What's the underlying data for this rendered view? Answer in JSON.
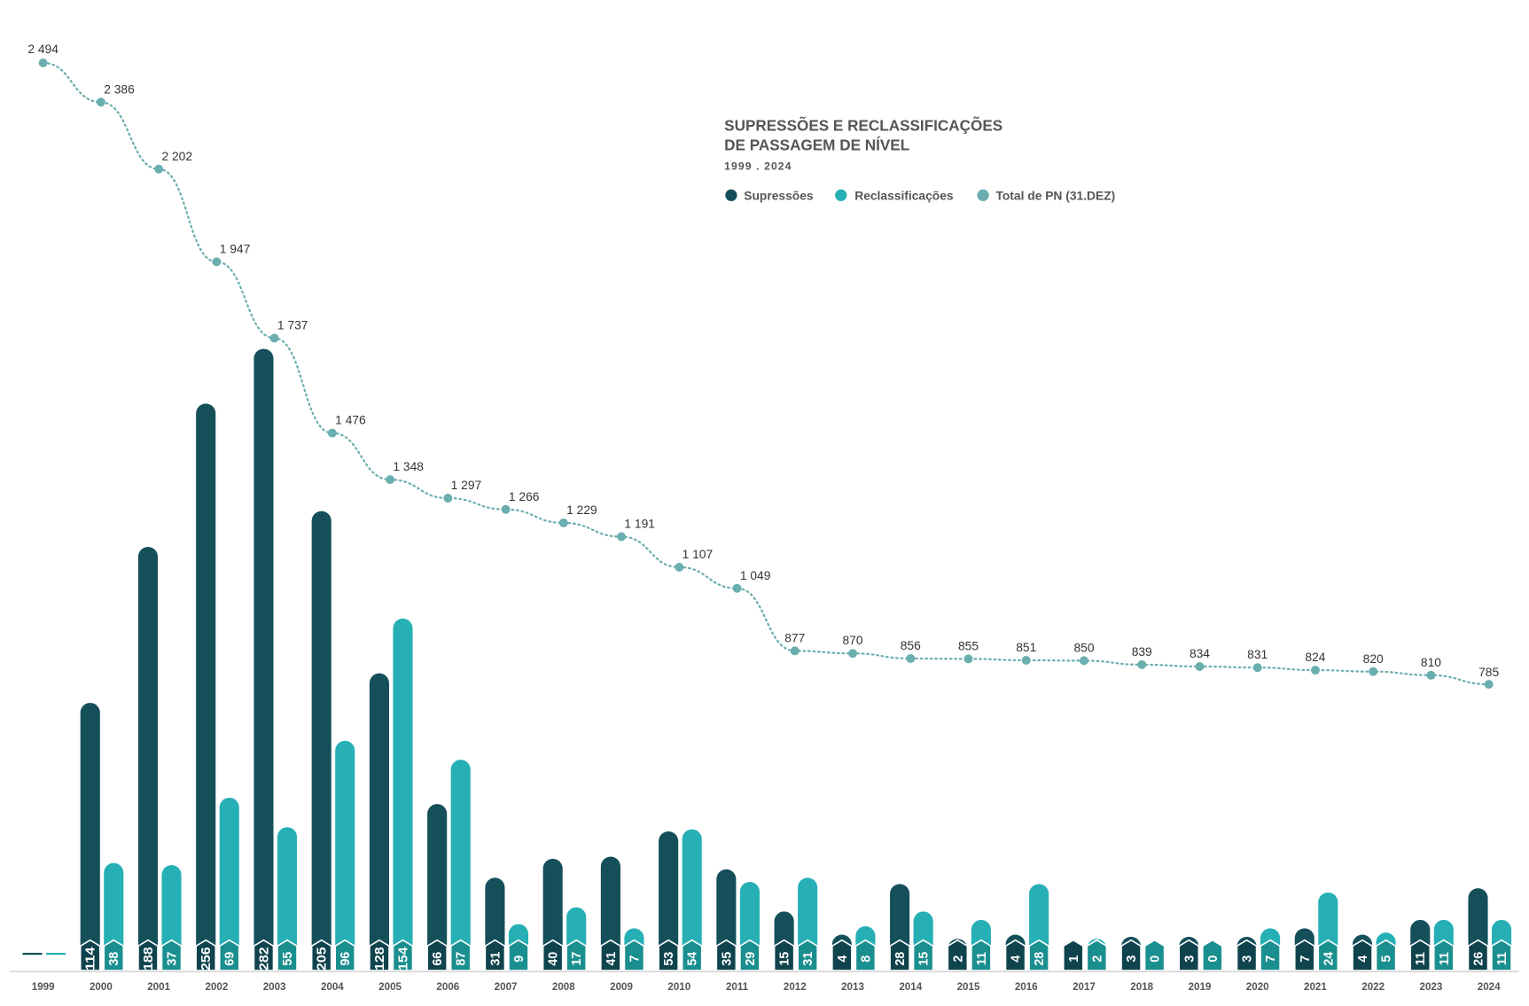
{
  "chart_data": {
    "type": "bar",
    "title_line1": "SUPRESSÕES E RECLASSIFICAÇÕES",
    "title_line2": "DE PASSAGEM DE NÍVEL",
    "subtitle": "1999 . 2024",
    "legend_placement": "top-right",
    "categories": [
      "1999",
      "2000",
      "2001",
      "2002",
      "2003",
      "2004",
      "2005",
      "2006",
      "2007",
      "2008",
      "2009",
      "2010",
      "2011",
      "2012",
      "2013",
      "2014",
      "2015",
      "2016",
      "2017",
      "2018",
      "2019",
      "2020",
      "2021",
      "2022",
      "2023",
      "2024"
    ],
    "series": [
      {
        "name": "Supressões",
        "type": "bar",
        "color": "#154f5a",
        "label_color": "#0f434d",
        "values": [
          null,
          114,
          188,
          256,
          282,
          205,
          128,
          66,
          31,
          40,
          41,
          53,
          35,
          15,
          4,
          28,
          2,
          4,
          1,
          3,
          3,
          3,
          7,
          4,
          11,
          26
        ]
      },
      {
        "name": "Reclassificações",
        "type": "bar",
        "color": "#26b0b5",
        "label_color": "#1a8f8f",
        "values": [
          null,
          38,
          37,
          69,
          55,
          96,
          154,
          87,
          9,
          17,
          7,
          54,
          29,
          31,
          8,
          15,
          11,
          28,
          2,
          0,
          0,
          7,
          24,
          5,
          11,
          11
        ]
      },
      {
        "name": "Total de PN (31.DEZ)",
        "type": "line",
        "color": "#6aaeaf",
        "values": [
          2494,
          2386,
          2202,
          1947,
          1737,
          1476,
          1348,
          1297,
          1266,
          1229,
          1191,
          1107,
          1049,
          877,
          870,
          856,
          855,
          851,
          850,
          839,
          834,
          831,
          824,
          820,
          810,
          785
        ],
        "labels": [
          "2 494",
          "2 386",
          "2 202",
          "1 947",
          "1 737",
          "1 476",
          "1 348",
          "1 297",
          "1 266",
          "1 229",
          "1 191",
          "1 107",
          "1 049",
          "877",
          "870",
          "856",
          "855",
          "851",
          "850",
          "839",
          "834",
          "831",
          "824",
          "820",
          "810",
          "785"
        ]
      }
    ]
  }
}
